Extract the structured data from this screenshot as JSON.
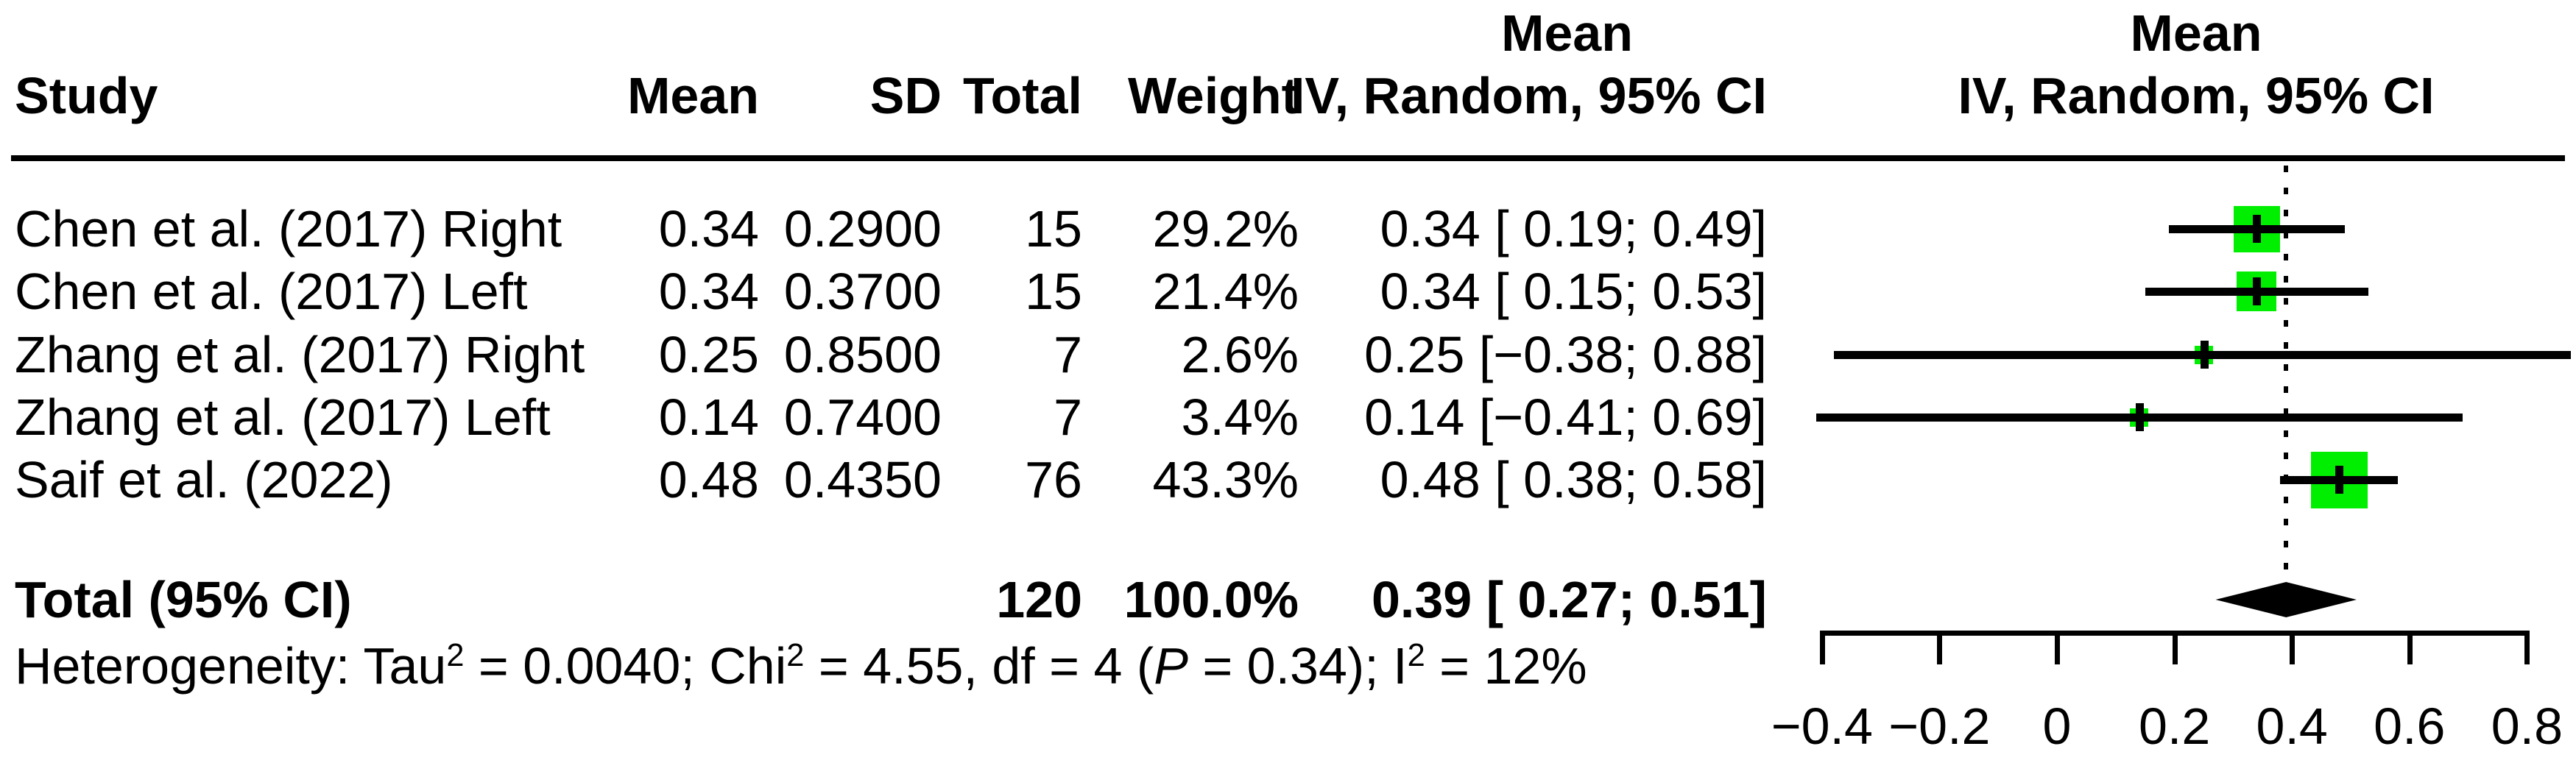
{
  "header": {
    "study": "Study",
    "mean": "Mean",
    "sd": "SD",
    "total": "Total",
    "weight": "Weight",
    "effect_line1": "Mean",
    "effect_line2": "IV, Random, 95% CI",
    "plot_line1": "Mean",
    "plot_line2": "IV, Random, 95% CI"
  },
  "rows": [
    {
      "study": "Chen et al. (2017) Right",
      "mean": "0.34",
      "sd": "0.2900",
      "total": "15",
      "weight": "29.2%",
      "ci_text": "0.34 [ 0.19; 0.49]",
      "est": 0.34,
      "lo": 0.19,
      "hi": 0.49,
      "weight_pct": 29.2
    },
    {
      "study": "Chen et al. (2017) Left",
      "mean": "0.34",
      "sd": "0.3700",
      "total": "15",
      "weight": "21.4%",
      "ci_text": "0.34 [ 0.15; 0.53]",
      "est": 0.34,
      "lo": 0.15,
      "hi": 0.53,
      "weight_pct": 21.4
    },
    {
      "study": "Zhang et al. (2017) Right",
      "mean": "0.25",
      "sd": "0.8500",
      "total": "7",
      "weight": "2.6%",
      "ci_text": "0.25 [−0.38; 0.88]",
      "est": 0.25,
      "lo": -0.38,
      "hi": 0.88,
      "weight_pct": 2.6
    },
    {
      "study": "Zhang et al. (2017) Left",
      "mean": "0.14",
      "sd": "0.7400",
      "total": "7",
      "weight": "3.4%",
      "ci_text": "0.14 [−0.41; 0.69]",
      "est": 0.14,
      "lo": -0.41,
      "hi": 0.69,
      "weight_pct": 3.4
    },
    {
      "study": "Saif et al. (2022)",
      "mean": "0.48",
      "sd": "0.4350",
      "total": "76",
      "weight": "43.3%",
      "ci_text": "0.48 [ 0.38; 0.58]",
      "est": 0.48,
      "lo": 0.38,
      "hi": 0.58,
      "weight_pct": 43.3
    }
  ],
  "total_row": {
    "label": "Total (95% CI)",
    "total": "120",
    "weight": "100.0%",
    "ci_text": "0.39 [ 0.27; 0.51]",
    "est": 0.39,
    "lo": 0.27,
    "hi": 0.51
  },
  "heterogeneity": {
    "prefix": "Heterogeneity: Tau",
    "sup1": "2",
    "mid1": " = 0.0040; Chi",
    "sup2": "2",
    "mid2": " = 4.55, df = 4 (",
    "p_label": "P",
    "mid3": " = 0.34); I",
    "sup3": "2",
    "suffix": " = 12%"
  },
  "axis": {
    "ticks": [
      -0.4,
      -0.2,
      0,
      0.2,
      0.4,
      0.6,
      0.8
    ],
    "tick_labels": [
      "−0.4",
      "−0.2",
      "0",
      "0.2",
      "0.4",
      "0.6",
      "0.8"
    ],
    "reference_line": 0.39
  },
  "colors": {
    "square": "#00EE00",
    "line": "#000000",
    "diamond": "#000000",
    "background": "#ffffff",
    "text": "#000000"
  },
  "chart_data": {
    "type": "scatter",
    "variant": "forest-plot-meta-analysis",
    "title": "",
    "effect_measure": "Mean",
    "model": "IV, Random, 95% CI",
    "columns": [
      "Study",
      "Mean",
      "SD",
      "Total",
      "Weight",
      "IV, Random, 95% CI"
    ],
    "studies": [
      {
        "name": "Chen et al. (2017) Right",
        "mean": 0.34,
        "sd": 0.29,
        "total": 15,
        "weight_pct": 29.2,
        "estimate": 0.34,
        "ci_lower": 0.19,
        "ci_upper": 0.49
      },
      {
        "name": "Chen et al. (2017) Left",
        "mean": 0.34,
        "sd": 0.37,
        "total": 15,
        "weight_pct": 21.4,
        "estimate": 0.34,
        "ci_lower": 0.15,
        "ci_upper": 0.53
      },
      {
        "name": "Zhang et al. (2017) Right",
        "mean": 0.25,
        "sd": 0.85,
        "total": 7,
        "weight_pct": 2.6,
        "estimate": 0.25,
        "ci_lower": -0.38,
        "ci_upper": 0.88
      },
      {
        "name": "Zhang et al. (2017) Left",
        "mean": 0.14,
        "sd": 0.74,
        "total": 7,
        "weight_pct": 3.4,
        "estimate": 0.14,
        "ci_lower": -0.41,
        "ci_upper": 0.69
      },
      {
        "name": "Saif et al. (2022)",
        "mean": 0.48,
        "sd": 0.435,
        "total": 76,
        "weight_pct": 43.3,
        "estimate": 0.48,
        "ci_lower": 0.38,
        "ci_upper": 0.58
      }
    ],
    "pooled": {
      "label": "Total (95% CI)",
      "total": 120,
      "weight_pct": 100.0,
      "estimate": 0.39,
      "ci_lower": 0.27,
      "ci_upper": 0.51
    },
    "heterogeneity": {
      "tau2": 0.004,
      "chi2": 4.55,
      "df": 4,
      "p": 0.34,
      "i2_pct": 12
    },
    "xlabel": "",
    "xlim": [
      -0.4,
      0.8
    ],
    "x_ticks": [
      -0.4,
      -0.2,
      0,
      0.2,
      0.4,
      0.6,
      0.8
    ],
    "reference_line": 0.39,
    "grid": false,
    "legend": false
  }
}
